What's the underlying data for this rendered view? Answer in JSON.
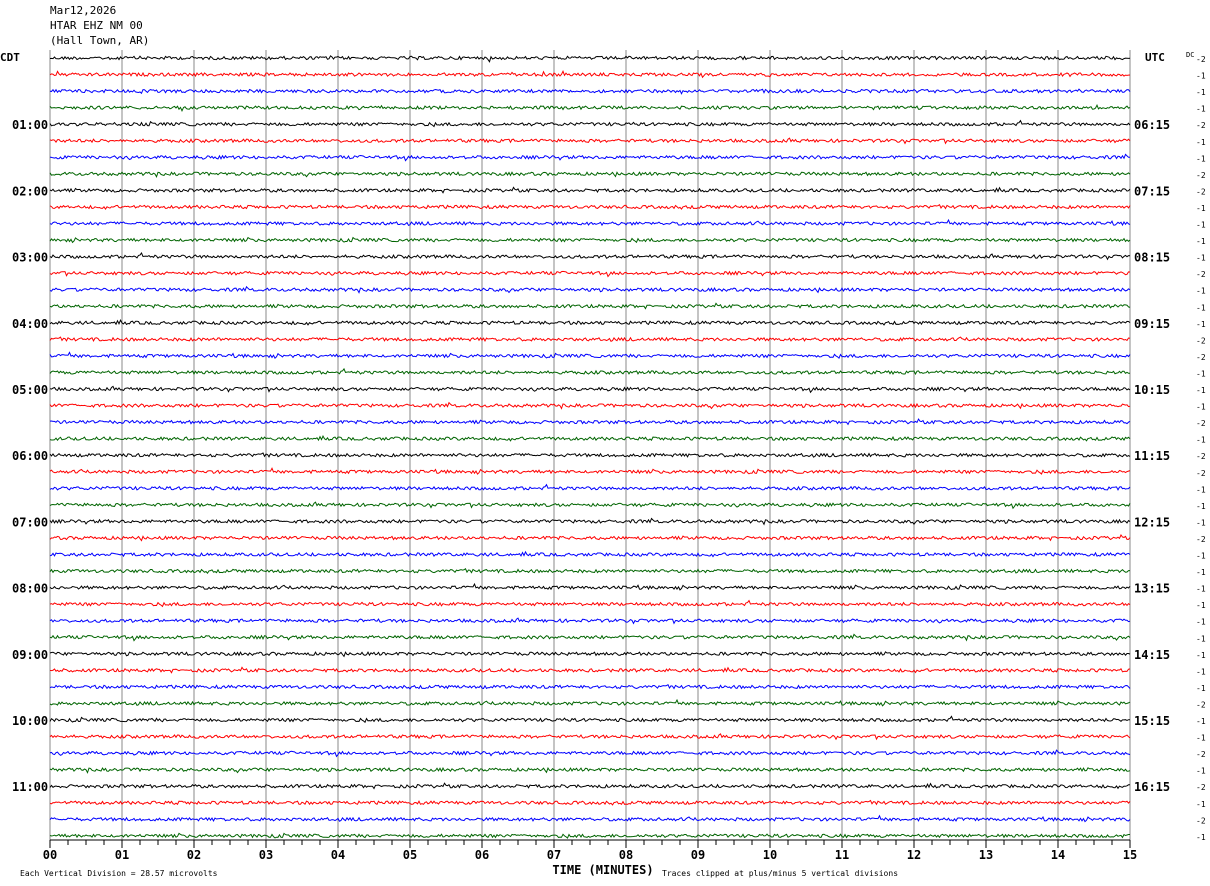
{
  "header": {
    "date": "Mar12,2026",
    "station": "HTAR EHZ NM 00",
    "location": "(Hall Town, AR)"
  },
  "chart_data": {
    "type": "line",
    "subtype": "helicorder",
    "left_timezone": "CDT",
    "right_timezone": "UTC",
    "dc_label": "DC",
    "xlabel": "TIME (MINUTES)",
    "xlim": [
      0,
      15
    ],
    "x_ticks": [
      "00",
      "01",
      "02",
      "03",
      "04",
      "05",
      "06",
      "07",
      "08",
      "09",
      "10",
      "11",
      "12",
      "13",
      "14",
      "15"
    ],
    "left_hour_labels": [
      "",
      "01:00",
      "02:00",
      "03:00",
      "04:00",
      "05:00",
      "06:00",
      "07:00",
      "08:00",
      "09:00",
      "10:00",
      "11:00"
    ],
    "right_hour_labels": [
      "",
      "06:15",
      "07:15",
      "08:15",
      "09:15",
      "10:15",
      "11:15",
      "12:15",
      "13:15",
      "14:15",
      "15:15",
      "16:15"
    ],
    "traces_per_hour": 4,
    "trace_colors": [
      "#000000",
      "#ff0000",
      "#0000ff",
      "#006400"
    ],
    "dc_offsets": [
      -2,
      -1,
      -1,
      -1,
      -2,
      -1,
      -1,
      -2,
      -2,
      -1,
      -1,
      -1,
      -1,
      -2,
      -1,
      -1,
      -1,
      -2,
      -2,
      -1,
      -1,
      -1,
      -2,
      -1,
      -2,
      -2,
      -1,
      -1,
      -1,
      -2,
      -1,
      -1,
      -1,
      -1,
      -1,
      -1,
      -1,
      -1,
      -1,
      -2,
      -1,
      -1,
      -2,
      -1,
      -2,
      -1,
      -2,
      -1
    ],
    "grid": true
  },
  "footer": {
    "scale": "Each Vertical Division =   28.57 microvolts",
    "clip_note": "Traces clipped at plus/minus 5 vertical divisions"
  }
}
